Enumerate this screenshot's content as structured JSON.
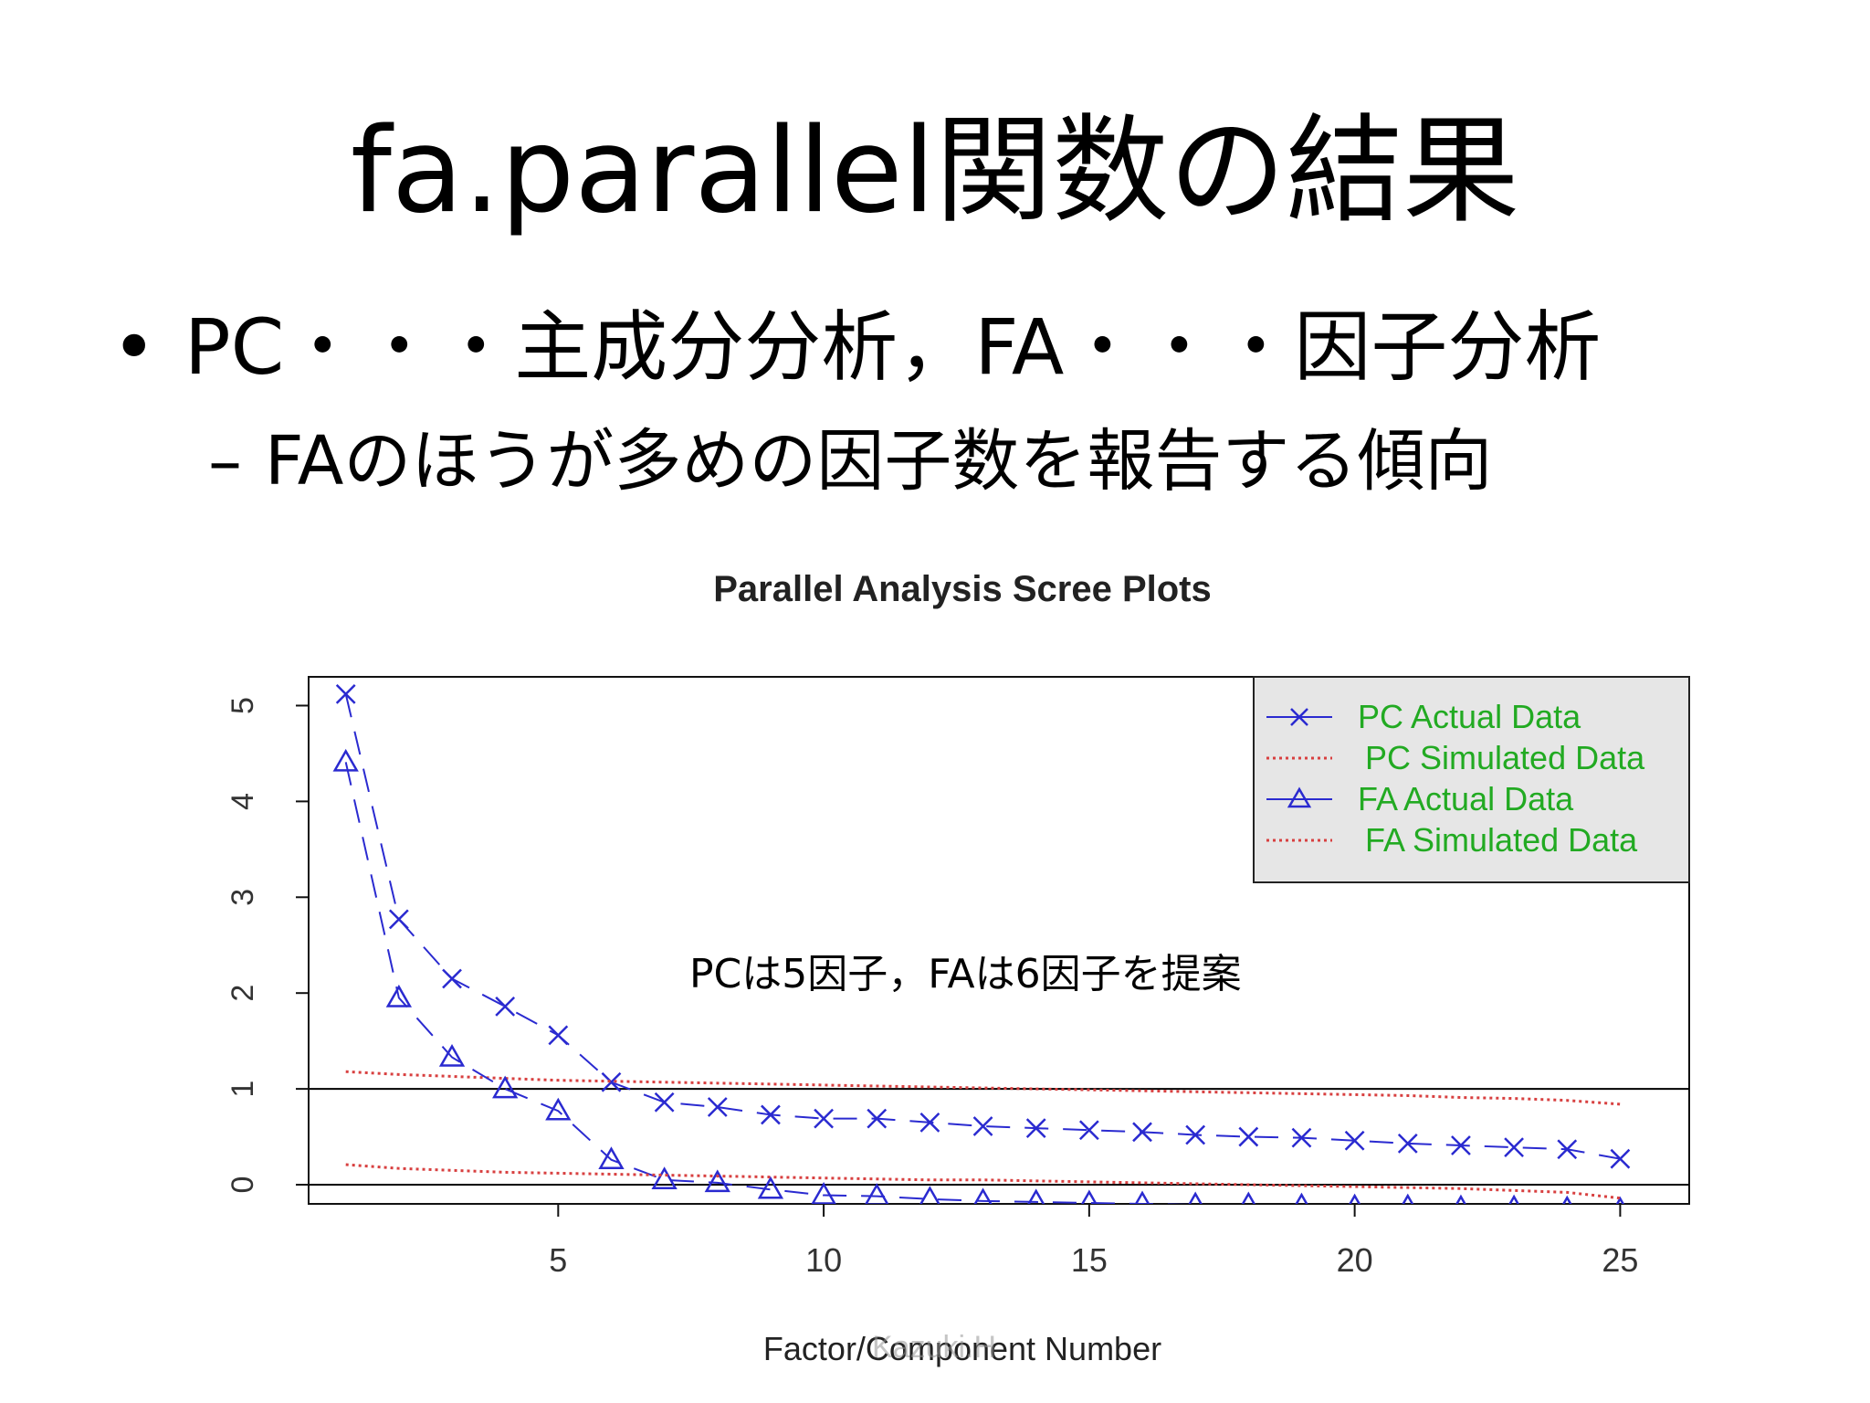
{
  "slide": {
    "title": "fa.parallel関数の結果",
    "bullet_marker": "•",
    "bullet": "PC・・・主成分分析，FA・・・因子分析",
    "sub_marker": "–",
    "sub_bullet": "FAのほうが多めの因子数を報告する傾向"
  },
  "chart_data": {
    "type": "line",
    "title": "Parallel Analysis Scree Plots",
    "xlabel": "Factor/Component Number",
    "ylabel": "",
    "xlim": [
      0.3,
      26.3
    ],
    "ylim": [
      -0.2,
      5.3
    ],
    "x_ticks": [
      5,
      10,
      15,
      20,
      25
    ],
    "y_ticks": [
      0,
      1,
      2,
      3,
      4,
      5
    ],
    "hlines": [
      0,
      1
    ],
    "legend": {
      "placement": "top-right",
      "entries": [
        "PC  Actual Data",
        "PC  Simulated Data",
        "FA  Actual Data",
        "FA  Simulated Data"
      ]
    },
    "annotation": "PCは5因子，FAは6因子を提案",
    "watermark": "Kazuki.H",
    "colors": {
      "actual": "#2a2ad0",
      "simulated": "#d84040",
      "legend_text": "#22aa22",
      "legend_bg": "#e6e6e6"
    },
    "x": [
      1,
      2,
      3,
      4,
      5,
      6,
      7,
      8,
      9,
      10,
      11,
      12,
      13,
      14,
      15,
      16,
      17,
      18,
      19,
      20,
      21,
      22,
      23,
      24,
      25
    ],
    "series": [
      {
        "name": "PC  Actual Data",
        "marker": "x",
        "style": "dashed",
        "values": [
          5.12,
          2.77,
          2.15,
          1.86,
          1.56,
          1.07,
          0.86,
          0.81,
          0.73,
          0.69,
          0.69,
          0.65,
          0.61,
          0.59,
          0.57,
          0.55,
          0.52,
          0.5,
          0.49,
          0.46,
          0.43,
          0.41,
          0.39,
          0.37,
          0.27
        ]
      },
      {
        "name": "PC  Simulated Data",
        "marker": "",
        "style": "dotted",
        "values": [
          1.18,
          1.15,
          1.13,
          1.11,
          1.09,
          1.08,
          1.07,
          1.06,
          1.05,
          1.04,
          1.03,
          1.02,
          1.01,
          1.0,
          0.99,
          0.98,
          0.97,
          0.96,
          0.95,
          0.94,
          0.93,
          0.91,
          0.9,
          0.88,
          0.84
        ]
      },
      {
        "name": "FA  Actual Data",
        "marker": "triangle",
        "style": "dashed",
        "values": [
          4.41,
          1.95,
          1.33,
          1.0,
          0.77,
          0.26,
          0.05,
          0.02,
          -0.05,
          -0.11,
          -0.12,
          -0.15,
          -0.17,
          -0.18,
          -0.19,
          -0.2,
          -0.21,
          -0.21,
          -0.22,
          -0.23,
          -0.23,
          -0.24,
          -0.24,
          -0.25,
          -0.26
        ]
      },
      {
        "name": "FA  Simulated Data",
        "marker": "",
        "style": "dotted",
        "values": [
          0.21,
          0.17,
          0.15,
          0.13,
          0.12,
          0.11,
          0.1,
          0.09,
          0.08,
          0.07,
          0.06,
          0.05,
          0.05,
          0.04,
          0.03,
          0.02,
          0.01,
          0.0,
          -0.01,
          -0.02,
          -0.03,
          -0.04,
          -0.06,
          -0.08,
          -0.14
        ]
      }
    ]
  }
}
